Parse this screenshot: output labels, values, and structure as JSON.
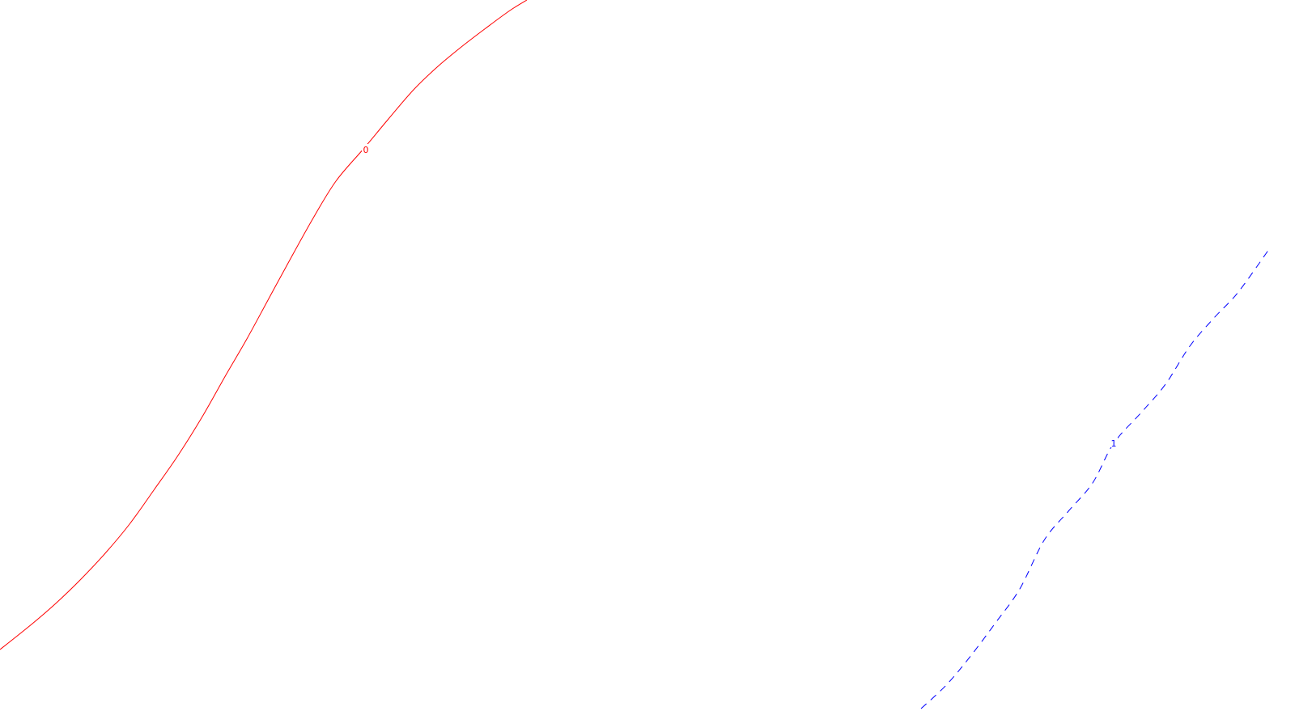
{
  "chart_data": {
    "type": "line",
    "grid": false,
    "legend": "none",
    "series": [
      {
        "label": "0",
        "color": "#ff0000",
        "line_style": "solid",
        "points": [
          [
            0,
            803
          ],
          [
            40,
            771
          ],
          [
            70,
            745
          ],
          [
            100,
            716
          ],
          [
            130,
            684
          ],
          [
            160,
            648
          ],
          [
            190,
            606
          ],
          [
            220,
            563
          ],
          [
            250,
            515
          ],
          [
            280,
            462
          ],
          [
            305,
            419
          ],
          [
            330,
            373
          ],
          [
            355,
            327
          ],
          [
            385,
            273
          ],
          [
            415,
            224
          ],
          [
            450,
            183
          ],
          [
            480,
            147
          ],
          [
            510,
            112
          ],
          [
            540,
            83
          ],
          [
            570,
            58
          ],
          [
            600,
            35
          ],
          [
            630,
            13
          ],
          [
            651,
            0
          ]
        ],
        "label_at": [
          452,
          185
        ]
      },
      {
        "label": "1",
        "color": "#0000ff",
        "line_style": "dashed",
        "points": [
          [
            1138,
            876
          ],
          [
            1170,
            846
          ],
          [
            1200,
            810
          ],
          [
            1230,
            770
          ],
          [
            1260,
            728
          ],
          [
            1290,
            668
          ],
          [
            1320,
            632
          ],
          [
            1350,
            597
          ],
          [
            1376,
            548
          ],
          [
            1410,
            510
          ],
          [
            1440,
            475
          ],
          [
            1470,
            428
          ],
          [
            1500,
            393
          ],
          [
            1530,
            361
          ],
          [
            1568,
            308
          ]
        ],
        "label_at": [
          1376,
          548
        ]
      }
    ]
  }
}
